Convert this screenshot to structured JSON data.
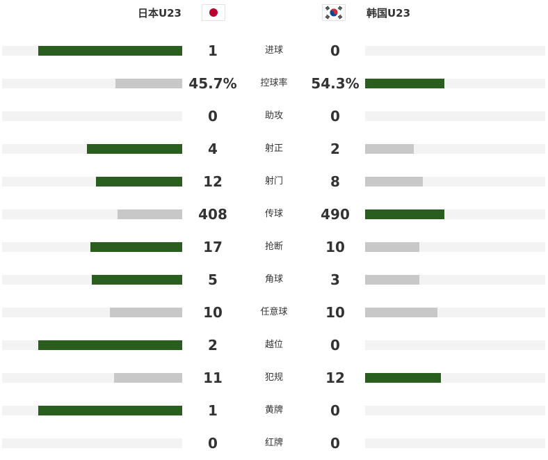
{
  "header": {
    "home_team": "日本U23",
    "away_team": "韩国U23",
    "home_flag_icon": "japan-flag-icon",
    "away_flag_icon": "south-korea-flag-icon"
  },
  "colors": {
    "leader_bar": "#2a5e1e",
    "trailer_bar": "#c8c8c8",
    "track": "#f3f3f3"
  },
  "stats": [
    {
      "label": "进球",
      "home": "1",
      "away": "0",
      "home_fill": 0.8,
      "away_fill": 0.0,
      "leader": "home"
    },
    {
      "label": "控球率",
      "home": "45.7%",
      "away": "54.3%",
      "home_fill": 0.37,
      "away_fill": 0.44,
      "leader": "away"
    },
    {
      "label": "助攻",
      "home": "0",
      "away": "0",
      "home_fill": 0.0,
      "away_fill": 0.0,
      "leader": "none"
    },
    {
      "label": "射正",
      "home": "4",
      "away": "2",
      "home_fill": 0.53,
      "away_fill": 0.27,
      "leader": "home"
    },
    {
      "label": "射门",
      "home": "12",
      "away": "8",
      "home_fill": 0.48,
      "away_fill": 0.32,
      "leader": "home"
    },
    {
      "label": "传球",
      "home": "408",
      "away": "490",
      "home_fill": 0.36,
      "away_fill": 0.44,
      "leader": "away"
    },
    {
      "label": "抢断",
      "home": "17",
      "away": "10",
      "home_fill": 0.51,
      "away_fill": 0.3,
      "leader": "home"
    },
    {
      "label": "角球",
      "home": "5",
      "away": "3",
      "home_fill": 0.5,
      "away_fill": 0.3,
      "leader": "home"
    },
    {
      "label": "任意球",
      "home": "10",
      "away": "10",
      "home_fill": 0.4,
      "away_fill": 0.4,
      "leader": "none"
    },
    {
      "label": "越位",
      "home": "2",
      "away": "0",
      "home_fill": 0.8,
      "away_fill": 0.0,
      "leader": "home"
    },
    {
      "label": "犯规",
      "home": "11",
      "away": "12",
      "home_fill": 0.38,
      "away_fill": 0.42,
      "leader": "away"
    },
    {
      "label": "黄牌",
      "home": "1",
      "away": "0",
      "home_fill": 0.8,
      "away_fill": 0.0,
      "leader": "home"
    },
    {
      "label": "红牌",
      "home": "0",
      "away": "0",
      "home_fill": 0.0,
      "away_fill": 0.0,
      "leader": "none"
    }
  ]
}
